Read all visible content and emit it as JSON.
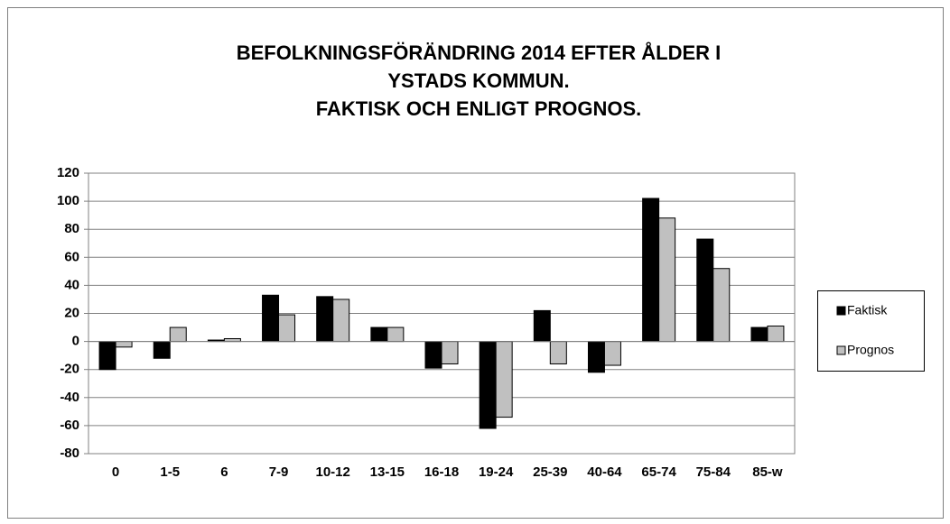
{
  "chart_data": {
    "type": "bar",
    "title": [
      "BEFOLKNINGSFÖRÄNDRING 2014 EFTER ÅLDER I",
      "YSTADS KOMMUN.",
      "FAKTISK OCH ENLIGT PROGNOS."
    ],
    "categories": [
      "0",
      "1-5",
      "6",
      "7-9",
      "10-12",
      "13-15",
      "16-18",
      "19-24",
      "25-39",
      "40-64",
      "65-74",
      "75-84",
      "85-w"
    ],
    "series": [
      {
        "name": "Faktisk",
        "color": "#000000",
        "values": [
          -20,
          -12,
          1,
          33,
          32,
          10,
          -19,
          -62,
          22,
          -22,
          102,
          73,
          10
        ]
      },
      {
        "name": "Prognos",
        "color": "#c0c0c0",
        "values": [
          -4,
          10,
          2,
          19,
          30,
          10,
          -16,
          -54,
          -16,
          -17,
          88,
          52,
          11
        ]
      }
    ],
    "ylim": [
      -80,
      120
    ],
    "yticks": [
      -80,
      -60,
      -40,
      -20,
      0,
      20,
      40,
      60,
      80,
      100,
      120
    ],
    "grid": true,
    "legend": "right"
  }
}
